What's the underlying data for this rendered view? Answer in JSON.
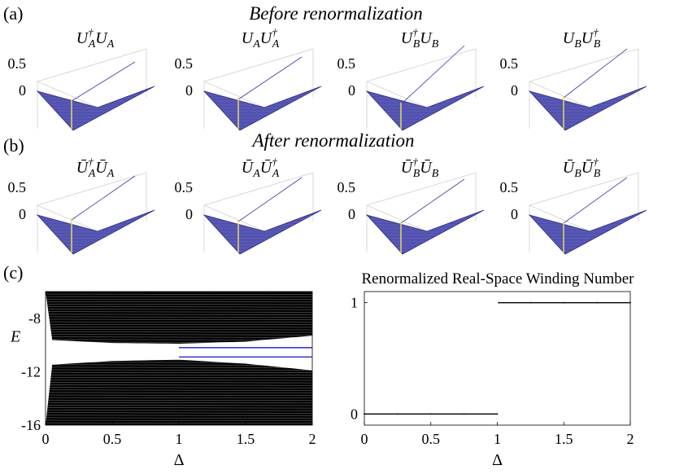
{
  "panel_labels": {
    "a": "(a)",
    "b": "(b)",
    "c": "(c)"
  },
  "titles": {
    "before": "Before renormalization",
    "after": "After renormalization"
  },
  "operators_before": [
    {
      "base1": "U",
      "sub1": "A",
      "dag1": true,
      "base2": "U",
      "sub2": "A",
      "dag2": false
    },
    {
      "base1": "U",
      "sub1": "A",
      "dag1": false,
      "base2": "U",
      "sub2": "A",
      "dag2": true
    },
    {
      "base1": "U",
      "sub1": "B",
      "dag1": true,
      "base2": "U",
      "sub2": "B",
      "dag2": false
    },
    {
      "base1": "U",
      "sub1": "B",
      "dag1": false,
      "base2": "U",
      "sub2": "B",
      "dag2": true
    }
  ],
  "operators_after": [
    {
      "base1": "Ū",
      "sub1": "A",
      "dag1": true,
      "base2": "Ū",
      "sub2": "A",
      "dag2": false
    },
    {
      "base1": "Ū",
      "sub1": "A",
      "dag1": false,
      "base2": "Ū",
      "sub2": "A",
      "dag2": true
    },
    {
      "base1": "Ū",
      "sub1": "B",
      "dag1": true,
      "base2": "Ū",
      "sub2": "B",
      "dag2": false
    },
    {
      "base1": "Ū",
      "sub1": "B",
      "dag1": false,
      "base2": "Ū",
      "sub2": "B",
      "dag2": true
    }
  ],
  "dagger": "†",
  "surface_zlabels": [
    "0.5",
    "0"
  ],
  "colors": {
    "surface": "#5a5ab4",
    "surface_edge": "#2c2c86",
    "ridge_light": "#f2e6a0",
    "ridge_mid": "#a99de0",
    "spectrum": "#000000",
    "edge_states": "#2a2ad0",
    "axis": "#000000",
    "box": "#cfcfcf"
  },
  "chart_data": [
    {
      "type": "scatter",
      "title": "",
      "xlabel": "Δ",
      "ylabel": "E",
      "xlim": [
        0,
        2
      ],
      "ylim": [
        -16,
        -6
      ],
      "xticks": [
        "0",
        "0.5",
        "1",
        "1.5",
        "2"
      ],
      "yticks": [
        "-8",
        "-12",
        "-16"
      ],
      "series": [
        {
          "name": "bulk bands (upper)",
          "values": [
            [
              0,
              -9.6
            ],
            [
              0.5,
              -9.85
            ],
            [
              1,
              -9.9
            ],
            [
              1.5,
              -9.75
            ],
            [
              2,
              -9.3
            ]
          ]
        },
        {
          "name": "bulk bands (lower)",
          "values": [
            [
              0,
              -11.5
            ],
            [
              0.5,
              -11.2
            ],
            [
              1,
              -11.1
            ],
            [
              1.5,
              -11.4
            ],
            [
              2,
              -11.9
            ]
          ]
        },
        {
          "name": "edge states",
          "values": [
            [
              1,
              -10.2
            ],
            [
              2,
              -10.2
            ],
            [
              1,
              -10.9
            ],
            [
              2,
              -10.9
            ]
          ]
        }
      ]
    },
    {
      "type": "line",
      "title": "Renormalized Real-Space Winding Number",
      "xlabel": "Δ",
      "ylabel": "",
      "xlim": [
        0,
        2
      ],
      "ylim": [
        -0.1,
        1.1
      ],
      "xticks": [
        "0",
        "0.5",
        "1",
        "1.5",
        "2"
      ],
      "yticks": [
        "0",
        "1"
      ],
      "x": [
        0,
        0.25,
        0.5,
        0.75,
        1.0,
        1.01,
        1.25,
        1.5,
        1.75,
        2.0
      ],
      "values": [
        0,
        0,
        0,
        0,
        0,
        1,
        1,
        1,
        1,
        1
      ]
    }
  ]
}
